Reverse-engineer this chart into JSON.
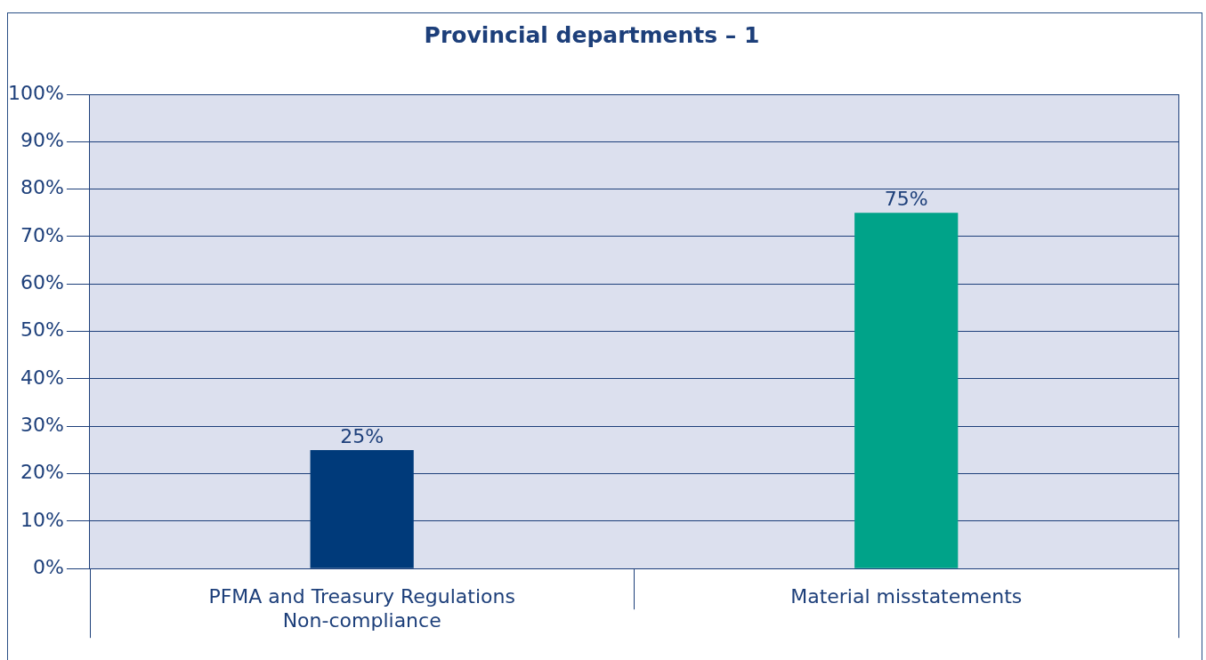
{
  "chart_data": {
    "type": "bar",
    "title": "Provincial departments – 1",
    "categories": [
      "PFMA and Treasury Regulations\nNon-compliance",
      "Material misstatements"
    ],
    "values": [
      25,
      75
    ],
    "colors": [
      "#003a7a",
      "#00a389"
    ],
    "value_labels": [
      "25%",
      "75%"
    ],
    "ylim": [
      0,
      100
    ],
    "yticks": [
      {
        "value": 0,
        "label": "0%"
      },
      {
        "value": 10,
        "label": "10%"
      },
      {
        "value": 20,
        "label": "20%"
      },
      {
        "value": 30,
        "label": "30%"
      },
      {
        "value": 40,
        "label": "40%"
      },
      {
        "value": 50,
        "label": "50%"
      },
      {
        "value": 60,
        "label": "60%"
      },
      {
        "value": 70,
        "label": "70%"
      },
      {
        "value": 80,
        "label": "80%"
      },
      {
        "value": 90,
        "label": "90%"
      },
      {
        "value": 100,
        "label": "100%"
      }
    ],
    "grid": "y",
    "legend": false
  }
}
